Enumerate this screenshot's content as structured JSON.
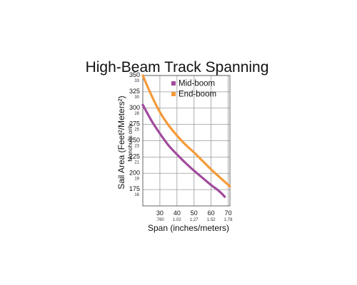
{
  "chart_data": {
    "type": "line",
    "title": "High-Beam Track Spanning",
    "xlabel": "Span (inches/meters)",
    "ylabel": "Sail Area (Feet²/Meters²)",
    "ylabel_sub": "Monohulls only",
    "xlim": [
      20,
      71
    ],
    "ylim": [
      150,
      350
    ],
    "x_ticks": [
      {
        "value": 30,
        "label": "30",
        "sublabel": ".760"
      },
      {
        "value": 40,
        "label": "40",
        "sublabel": "1.02"
      },
      {
        "value": 50,
        "label": "50",
        "sublabel": "1.27"
      },
      {
        "value": 60,
        "label": "60",
        "sublabel": "1.52"
      },
      {
        "value": 70,
        "label": "70",
        "sublabel": "1.78"
      }
    ],
    "y_ticks": [
      {
        "value": 350,
        "label": "350",
        "sublabel": "33"
      },
      {
        "value": 325,
        "label": "325",
        "sublabel": "30"
      },
      {
        "value": 300,
        "label": "300",
        "sublabel": "28"
      },
      {
        "value": 275,
        "label": "275",
        "sublabel": "25"
      },
      {
        "value": 250,
        "label": "250",
        "sublabel": "23"
      },
      {
        "value": 225,
        "label": "225",
        "sublabel": "21"
      },
      {
        "value": 200,
        "label": "200",
        "sublabel": "19"
      },
      {
        "value": 175,
        "label": "175",
        "sublabel": "16"
      }
    ],
    "grid": true,
    "legend_position": "top-right",
    "series": [
      {
        "name": "Mid-boom",
        "color": "#a04a9c",
        "x": [
          20,
          25,
          30,
          35,
          40,
          45,
          50,
          55,
          60,
          65,
          68
        ],
        "y": [
          305,
          281,
          261,
          243,
          229,
          216,
          204,
          193,
          182,
          172,
          164
        ]
      },
      {
        "name": "End-boom",
        "color": "#f59a38",
        "x": [
          20,
          25,
          30,
          35,
          40,
          45,
          50,
          55,
          60,
          65,
          71
        ],
        "y": [
          350,
          320,
          294,
          274,
          258,
          244,
          232,
          219,
          206,
          194,
          180
        ]
      }
    ]
  }
}
